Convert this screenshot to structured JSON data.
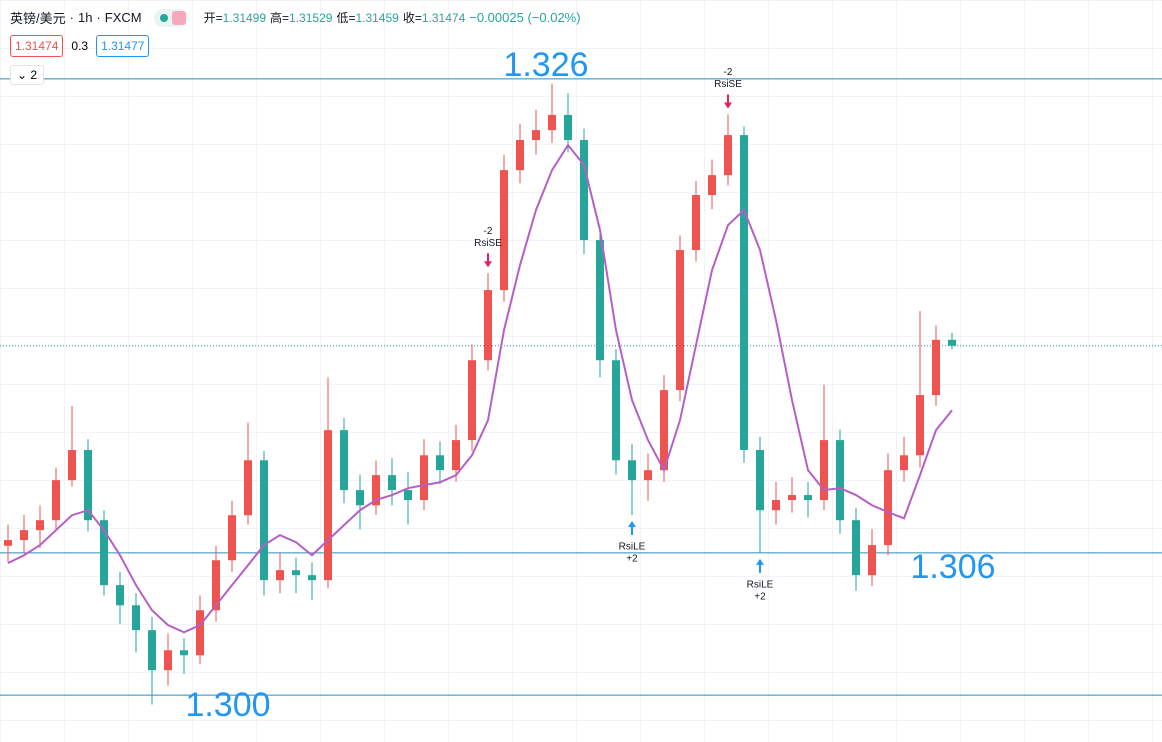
{
  "header": {
    "symbol": "英镑/美元",
    "interval": "1h",
    "exchange": "FXCM",
    "ohlc": [
      {
        "label": "开=",
        "value": 1.31499
      },
      {
        "label": "高=",
        "value": 1.31529
      },
      {
        "label": "低=",
        "value": 1.31459
      },
      {
        "label": "收=",
        "value": 1.31474
      }
    ],
    "change": "−0.00025 (−0.02%)",
    "bid": 1.31474,
    "spread": 0.3,
    "ask": 1.31477,
    "indicator_count": 2
  },
  "chart_data": {
    "type": "candlestick",
    "ylim": [
      1.29802,
      1.32933
    ],
    "up_color": "#ef5350",
    "down_color": "#26a69a",
    "series": {
      "open": [
        1.3063,
        1.30654,
        1.30696,
        1.30738,
        1.30907,
        1.31034,
        1.30738,
        1.30464,
        1.30379,
        1.30274,
        1.30105,
        1.30189,
        1.30168,
        1.30358,
        1.30569,
        1.30759,
        1.30991,
        1.30485,
        1.30527,
        1.30506,
        1.30485,
        1.31118,
        1.30865,
        1.30801,
        1.30928,
        1.30865,
        1.30823,
        1.31012,
        1.30949,
        1.31076,
        1.31413,
        1.31709,
        1.32215,
        1.32342,
        1.32384,
        1.32448,
        1.32342,
        1.3192,
        1.31413,
        1.30991,
        1.30907,
        1.30949,
        1.31287,
        1.31878,
        1.3211,
        1.32194,
        1.32363,
        1.31034,
        1.3078,
        1.30823,
        1.30844,
        1.30823,
        1.31076,
        1.30738,
        1.30506,
        1.30633,
        1.30949,
        1.31012,
        1.31266,
        1.31499
      ],
      "high": [
        1.3072,
        1.3076,
        1.308,
        1.3096,
        1.3122,
        1.3108,
        1.3078,
        1.3052,
        1.3043,
        1.3033,
        1.3026,
        1.3024,
        1.3042,
        1.3063,
        1.3082,
        1.3115,
        1.3103,
        1.306,
        1.3058,
        1.3056,
        1.3134,
        1.3117,
        1.3093,
        1.3099,
        1.31,
        1.3094,
        1.3108,
        1.3107,
        1.3114,
        1.3148,
        1.3178,
        1.3228,
        1.3241,
        1.3247,
        1.3258,
        1.3254,
        1.3239,
        1.3197,
        1.3146,
        1.3106,
        1.3102,
        1.3135,
        1.3194,
        1.3217,
        1.3226,
        1.3245,
        1.324,
        1.3109,
        1.309,
        1.3092,
        1.309,
        1.3131,
        1.3112,
        1.3079,
        1.307,
        1.3102,
        1.3109,
        1.3162,
        1.3156,
        1.31529
      ],
      "low": [
        1.3056,
        1.306,
        1.3062,
        1.307,
        1.3088,
        1.3069,
        1.3042,
        1.303,
        1.3018,
        1.2996,
        1.3004,
        1.3009,
        1.3013,
        1.3031,
        1.3052,
        1.3072,
        1.3042,
        1.3043,
        1.3043,
        1.304,
        1.3045,
        1.3081,
        1.307,
        1.3076,
        1.308,
        1.3072,
        1.3078,
        1.3089,
        1.309,
        1.3103,
        1.3137,
        1.3166,
        1.3216,
        1.3228,
        1.3233,
        1.3229,
        1.3186,
        1.3134,
        1.3093,
        1.3076,
        1.3082,
        1.309,
        1.3124,
        1.3183,
        1.3205,
        1.3215,
        1.3098,
        1.306,
        1.3072,
        1.3077,
        1.3075,
        1.3078,
        1.3068,
        1.3044,
        1.3046,
        1.3059,
        1.309,
        1.3096,
        1.3122,
        1.31459
      ],
      "close": [
        1.30654,
        1.30696,
        1.30738,
        1.30907,
        1.31034,
        1.30738,
        1.30464,
        1.30379,
        1.30274,
        1.30105,
        1.30189,
        1.30168,
        1.30358,
        1.30569,
        1.30759,
        1.30991,
        1.30485,
        1.30527,
        1.30506,
        1.30485,
        1.31118,
        1.30865,
        1.30801,
        1.30928,
        1.30865,
        1.30823,
        1.31012,
        1.30949,
        1.31076,
        1.31413,
        1.31709,
        1.32215,
        1.32342,
        1.32384,
        1.32448,
        1.32342,
        1.3192,
        1.31413,
        1.30991,
        1.30907,
        1.30949,
        1.31287,
        1.31878,
        1.3211,
        1.32194,
        1.32363,
        1.31034,
        1.3078,
        1.30823,
        1.30844,
        1.30823,
        1.31076,
        1.30738,
        1.30506,
        1.30633,
        1.30949,
        1.31012,
        1.31266,
        1.31499,
        1.31474
      ]
    },
    "ma": {
      "color": "#b65fc6",
      "values": [
        1.30557,
        1.3059,
        1.30633,
        1.30696,
        1.30759,
        1.3078,
        1.30696,
        1.3059,
        1.30464,
        1.30358,
        1.30295,
        1.30265,
        1.30295,
        1.30379,
        1.30464,
        1.30548,
        1.30633,
        1.30675,
        1.30645,
        1.3059,
        1.30654,
        1.30717,
        1.3078,
        1.30823,
        1.30844,
        1.30873,
        1.30886,
        1.30898,
        1.30928,
        1.31012,
        1.3116,
        1.3154,
        1.31814,
        1.32047,
        1.32215,
        1.32321,
        1.32237,
        1.31962,
        1.3154,
        1.31245,
        1.31076,
        1.30949,
        1.3116,
        1.31477,
        1.31793,
        1.31983,
        1.32047,
        1.31878,
        1.31582,
        1.31245,
        1.30949,
        1.30865,
        1.30873,
        1.30844,
        1.30801,
        1.30772,
        1.30746,
        1.30928,
        1.31118,
        1.31202
      ]
    },
    "last_price": 1.31474,
    "levels": {
      "color": "#2a8bb5",
      "label_color": "#2196f3",
      "values": [
        1.326,
        1.306,
        {
          "value": 1.3,
          "label": "1.300"
        }
      ]
    },
    "signals": {
      "labels": [
        null,
        null,
        null,
        null,
        null,
        null,
        null,
        null,
        null,
        null,
        null,
        null,
        null,
        null,
        null,
        null,
        null,
        null,
        null,
        null,
        null,
        null,
        null,
        null,
        null,
        null,
        null,
        null,
        null,
        null,
        "RsiSE",
        null,
        null,
        null,
        null,
        null,
        null,
        null,
        null,
        "RsiLE",
        null,
        null,
        null,
        null,
        null,
        "RsiSE",
        null,
        "RsiLE",
        null,
        null,
        null,
        null,
        null,
        null,
        null,
        null,
        null,
        null,
        null,
        null
      ],
      "qty": [
        null,
        null,
        null,
        null,
        null,
        null,
        null,
        null,
        null,
        null,
        null,
        null,
        null,
        null,
        null,
        null,
        null,
        null,
        null,
        null,
        null,
        null,
        null,
        null,
        null,
        null,
        null,
        null,
        null,
        null,
        "-2",
        null,
        null,
        null,
        null,
        null,
        null,
        null,
        null,
        "+2",
        null,
        null,
        null,
        null,
        null,
        "-2",
        null,
        "+2",
        null,
        null,
        null,
        null,
        null,
        null,
        null,
        null,
        null,
        null,
        null,
        null
      ]
    }
  }
}
